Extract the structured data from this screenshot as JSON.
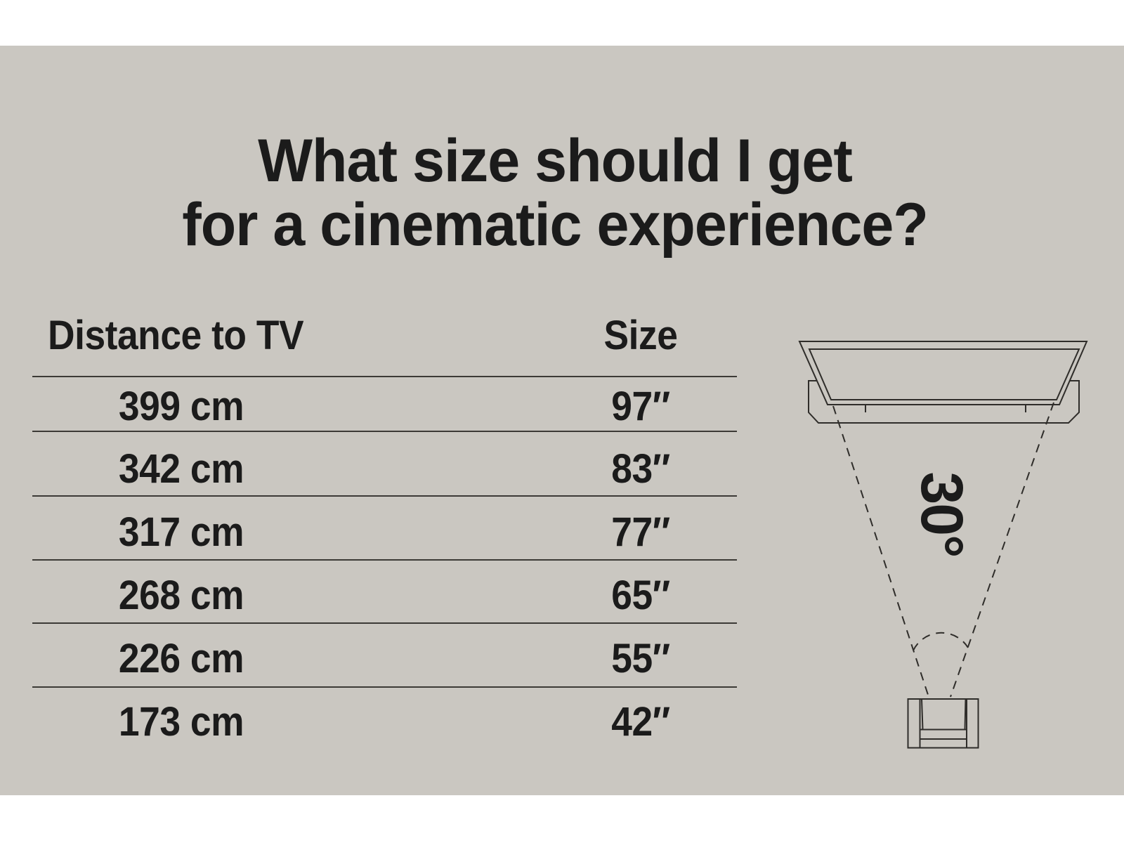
{
  "colors": {
    "page_bg": "#ffffff",
    "panel_bg": "#cac7c1",
    "ink": "#1b1b1b",
    "rule": "#3c3a36",
    "diagram_line": "#2f2d2a"
  },
  "title": {
    "line1": "What size should I get",
    "line2": "for a cinematic experience?"
  },
  "table": {
    "distance_header": "Distance to TV",
    "size_header": "Size",
    "rows": [
      {
        "distance": "399 cm",
        "size": "97″"
      },
      {
        "distance": "342 cm",
        "size": "83″"
      },
      {
        "distance": "317 cm",
        "size": "77″"
      },
      {
        "distance": "268 cm",
        "size": "65″"
      },
      {
        "distance": "226 cm",
        "size": "55″"
      },
      {
        "distance": "173 cm",
        "size": "42″"
      }
    ]
  },
  "diagram": {
    "angle_label": "30°",
    "tv_icon": "tv-top-view-icon",
    "chair_icon": "armchair-top-view-icon"
  },
  "chart_data": {
    "type": "table",
    "title": "What size should I get for a cinematic experience?",
    "columns": [
      "Distance to TV",
      "Size"
    ],
    "rows": [
      [
        "399 cm",
        "97″"
      ],
      [
        "342 cm",
        "83″"
      ],
      [
        "317 cm",
        "77″"
      ],
      [
        "268 cm",
        "65″"
      ],
      [
        "226 cm",
        "55″"
      ],
      [
        "173 cm",
        "42″"
      ]
    ],
    "annotations": [
      "30° viewing angle shown between armchair and TV edges"
    ]
  }
}
